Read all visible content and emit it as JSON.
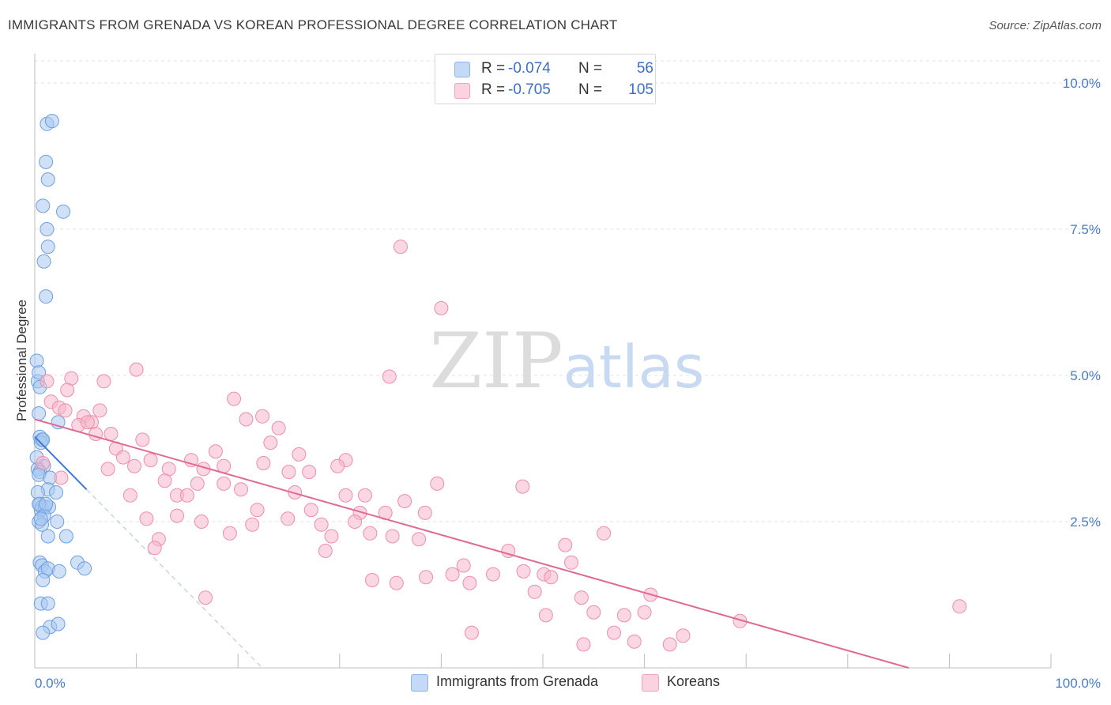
{
  "header": {
    "title": "IMMIGRANTS FROM GRENADA VS KOREAN PROFESSIONAL DEGREE CORRELATION CHART",
    "source": "Source: ZipAtlas.com"
  },
  "watermark": {
    "zip": "ZIP",
    "atlas": "atlas"
  },
  "legend": {
    "rows": [
      {
        "r_label": "R =",
        "r_value": "-0.074",
        "n_label": "N =",
        "n_value": "56",
        "color": "#a9c8f0"
      },
      {
        "r_label": "R =",
        "r_value": "-0.705",
        "n_label": "N =",
        "n_value": "105",
        "color": "#f6b6cb"
      }
    ]
  },
  "bottom_legend": [
    {
      "label": "Immigrants from Grenada",
      "color": "#a9c8f0"
    },
    {
      "label": "Koreans",
      "color": "#f6b6cb"
    }
  ],
  "chart_data": {
    "type": "scatter",
    "title": "IMMIGRANTS FROM GRENADA VS KOREAN PROFESSIONAL DEGREE CORRELATION CHART",
    "xlabel": "",
    "ylabel": "Professional Degree",
    "xlim": [
      0,
      100
    ],
    "ylim": [
      0,
      10.5
    ],
    "x_tick_labels": [
      "0.0%",
      "100.0%"
    ],
    "y_ticks": [
      2.5,
      5.0,
      7.5,
      10.0
    ],
    "y_tick_labels": [
      "2.5%",
      "5.0%",
      "7.5%",
      "10.0%"
    ],
    "grid": true,
    "series": [
      {
        "name": "Immigrants from Grenada",
        "color": "#a9c8f0",
        "stroke": "#6f9fe0",
        "trend_color": "#3d78d0",
        "trend": {
          "x0": 0,
          "y0": 3.95,
          "x1": 5.1,
          "y1": 3.05,
          "dash_to_x": 22.3
        },
        "points": [
          [
            1.2,
            9.3
          ],
          [
            1.7,
            9.35
          ],
          [
            1.1,
            8.65
          ],
          [
            1.3,
            8.35
          ],
          [
            0.8,
            7.9
          ],
          [
            2.8,
            7.8
          ],
          [
            1.2,
            7.5
          ],
          [
            1.3,
            7.2
          ],
          [
            0.9,
            6.95
          ],
          [
            1.1,
            6.35
          ],
          [
            0.2,
            5.25
          ],
          [
            0.3,
            4.9
          ],
          [
            0.4,
            5.05
          ],
          [
            0.5,
            4.8
          ],
          [
            0.4,
            4.35
          ],
          [
            2.3,
            4.2
          ],
          [
            0.5,
            3.95
          ],
          [
            0.7,
            3.9
          ],
          [
            0.6,
            3.85
          ],
          [
            0.8,
            3.9
          ],
          [
            0.9,
            3.45
          ],
          [
            0.3,
            3.4
          ],
          [
            0.5,
            3.35
          ],
          [
            0.4,
            3.3
          ],
          [
            1.5,
            3.25
          ],
          [
            1.3,
            3.05
          ],
          [
            2.1,
            3.0
          ],
          [
            0.3,
            3.0
          ],
          [
            0.5,
            2.8
          ],
          [
            0.6,
            2.7
          ],
          [
            0.7,
            2.75
          ],
          [
            1.0,
            2.75
          ],
          [
            1.4,
            2.75
          ],
          [
            0.4,
            2.8
          ],
          [
            0.9,
            2.6
          ],
          [
            0.4,
            2.5
          ],
          [
            2.2,
            2.5
          ],
          [
            0.7,
            2.45
          ],
          [
            1.3,
            2.25
          ],
          [
            3.1,
            2.25
          ],
          [
            0.5,
            1.8
          ],
          [
            0.7,
            1.75
          ],
          [
            1.0,
            1.65
          ],
          [
            1.3,
            1.7
          ],
          [
            2.4,
            1.65
          ],
          [
            4.2,
            1.8
          ],
          [
            4.9,
            1.7
          ],
          [
            0.8,
            1.5
          ],
          [
            0.6,
            1.1
          ],
          [
            1.3,
            1.1
          ],
          [
            1.5,
            0.7
          ],
          [
            2.3,
            0.75
          ],
          [
            0.8,
            0.6
          ],
          [
            0.2,
            3.6
          ],
          [
            0.6,
            2.55
          ],
          [
            1.1,
            2.8
          ]
        ]
      },
      {
        "name": "Koreans",
        "color": "#f6b6cb",
        "stroke": "#ec8fad",
        "trend_color": "#e06a94",
        "trend": {
          "x0": 0,
          "y0": 4.25,
          "x1": 86.0,
          "y1": 0.0
        },
        "points": [
          [
            1.2,
            4.9
          ],
          [
            3.6,
            4.95
          ],
          [
            6.8,
            4.9
          ],
          [
            10.0,
            5.1
          ],
          [
            34.9,
            4.98
          ],
          [
            36.0,
            7.2
          ],
          [
            40.0,
            6.15
          ],
          [
            3.2,
            4.75
          ],
          [
            1.6,
            4.55
          ],
          [
            2.4,
            4.45
          ],
          [
            6.4,
            4.4
          ],
          [
            4.8,
            4.3
          ],
          [
            4.3,
            4.15
          ],
          [
            5.6,
            4.2
          ],
          [
            19.6,
            4.6
          ],
          [
            20.8,
            4.25
          ],
          [
            22.4,
            4.3
          ],
          [
            24.0,
            4.1
          ],
          [
            6.0,
            4.0
          ],
          [
            7.5,
            4.0
          ],
          [
            8.0,
            3.75
          ],
          [
            10.6,
            3.9
          ],
          [
            23.2,
            3.85
          ],
          [
            26.0,
            3.65
          ],
          [
            8.7,
            3.6
          ],
          [
            11.4,
            3.55
          ],
          [
            15.4,
            3.55
          ],
          [
            17.8,
            3.7
          ],
          [
            30.6,
            3.55
          ],
          [
            18.6,
            3.45
          ],
          [
            22.5,
            3.5
          ],
          [
            29.8,
            3.45
          ],
          [
            7.2,
            3.4
          ],
          [
            13.2,
            3.4
          ],
          [
            16.6,
            3.4
          ],
          [
            25.0,
            3.35
          ],
          [
            27.0,
            3.35
          ],
          [
            2.6,
            3.25
          ],
          [
            12.8,
            3.2
          ],
          [
            16.0,
            3.15
          ],
          [
            20.3,
            3.05
          ],
          [
            18.6,
            3.15
          ],
          [
            39.6,
            3.15
          ],
          [
            48.0,
            3.1
          ],
          [
            9.4,
            2.95
          ],
          [
            14.0,
            2.95
          ],
          [
            15.0,
            2.95
          ],
          [
            25.6,
            3.0
          ],
          [
            30.6,
            2.95
          ],
          [
            32.5,
            2.95
          ],
          [
            36.4,
            2.85
          ],
          [
            21.9,
            2.7
          ],
          [
            27.2,
            2.7
          ],
          [
            32.0,
            2.65
          ],
          [
            34.5,
            2.65
          ],
          [
            38.4,
            2.65
          ],
          [
            11.0,
            2.55
          ],
          [
            14.0,
            2.6
          ],
          [
            16.4,
            2.5
          ],
          [
            24.9,
            2.55
          ],
          [
            28.2,
            2.45
          ],
          [
            31.5,
            2.5
          ],
          [
            21.4,
            2.45
          ],
          [
            19.2,
            2.3
          ],
          [
            33.0,
            2.3
          ],
          [
            35.2,
            2.25
          ],
          [
            29.2,
            2.25
          ],
          [
            37.8,
            2.2
          ],
          [
            12.2,
            2.2
          ],
          [
            11.8,
            2.05
          ],
          [
            56.0,
            2.3
          ],
          [
            52.2,
            2.1
          ],
          [
            46.6,
            2.0
          ],
          [
            28.6,
            2.0
          ],
          [
            52.8,
            1.8
          ],
          [
            42.2,
            1.75
          ],
          [
            41.1,
            1.6
          ],
          [
            45.1,
            1.6
          ],
          [
            48.1,
            1.65
          ],
          [
            50.1,
            1.6
          ],
          [
            50.8,
            1.55
          ],
          [
            33.2,
            1.5
          ],
          [
            38.5,
            1.55
          ],
          [
            35.6,
            1.45
          ],
          [
            42.8,
            1.45
          ],
          [
            49.2,
            1.3
          ],
          [
            60.6,
            1.25
          ],
          [
            53.8,
            1.2
          ],
          [
            16.8,
            1.2
          ],
          [
            55.0,
            0.95
          ],
          [
            58.0,
            0.9
          ],
          [
            60.0,
            0.95
          ],
          [
            50.3,
            0.9
          ],
          [
            69.4,
            0.8
          ],
          [
            91.0,
            1.05
          ],
          [
            43.0,
            0.6
          ],
          [
            57.0,
            0.6
          ],
          [
            63.8,
            0.55
          ],
          [
            54.0,
            0.4
          ],
          [
            59.0,
            0.45
          ],
          [
            62.5,
            0.4
          ],
          [
            0.8,
            3.5
          ],
          [
            9.8,
            3.45
          ],
          [
            5.2,
            4.2
          ],
          [
            3.0,
            4.4
          ]
        ]
      }
    ]
  }
}
